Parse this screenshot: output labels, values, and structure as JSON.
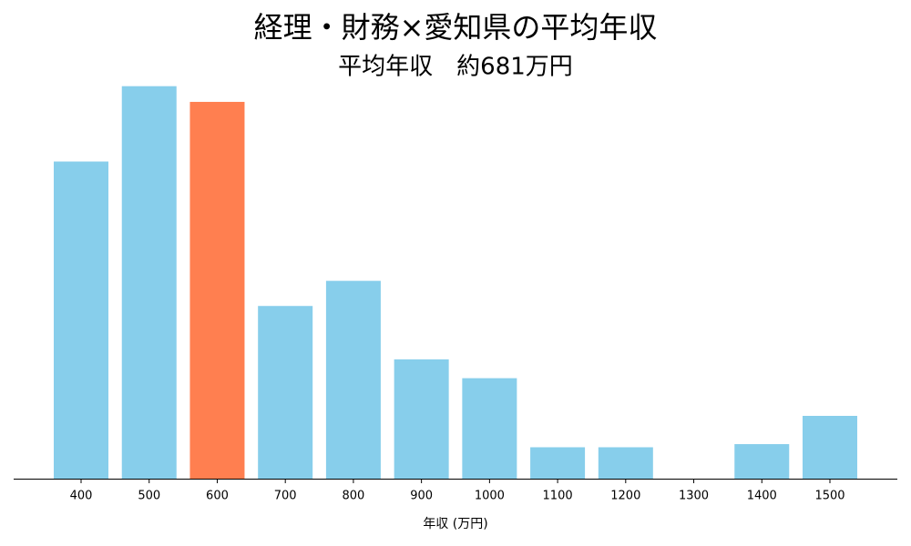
{
  "chart_data": {
    "type": "bar",
    "title": "経理・財務×愛知県の平均年収",
    "subtitle": "平均年収　約681万円",
    "x_label": "年収 (万円)",
    "categories": [
      "400",
      "500",
      "600",
      "700",
      "800",
      "900",
      "1000",
      "1100",
      "1200",
      "1300",
      "1400",
      "1500"
    ],
    "values": [
      10.1,
      12.5,
      12.0,
      5.5,
      6.3,
      3.8,
      3.2,
      1.0,
      1.0,
      0,
      1.1,
      2.0
    ],
    "colors": [
      "#87ceeb",
      "#87ceeb",
      "#ff7f50",
      "#87ceeb",
      "#87ceeb",
      "#87ceeb",
      "#87ceeb",
      "#87ceeb",
      "#87ceeb",
      "#87ceeb",
      "#87ceeb",
      "#87ceeb"
    ],
    "ylim": [
      0,
      13.1
    ]
  }
}
